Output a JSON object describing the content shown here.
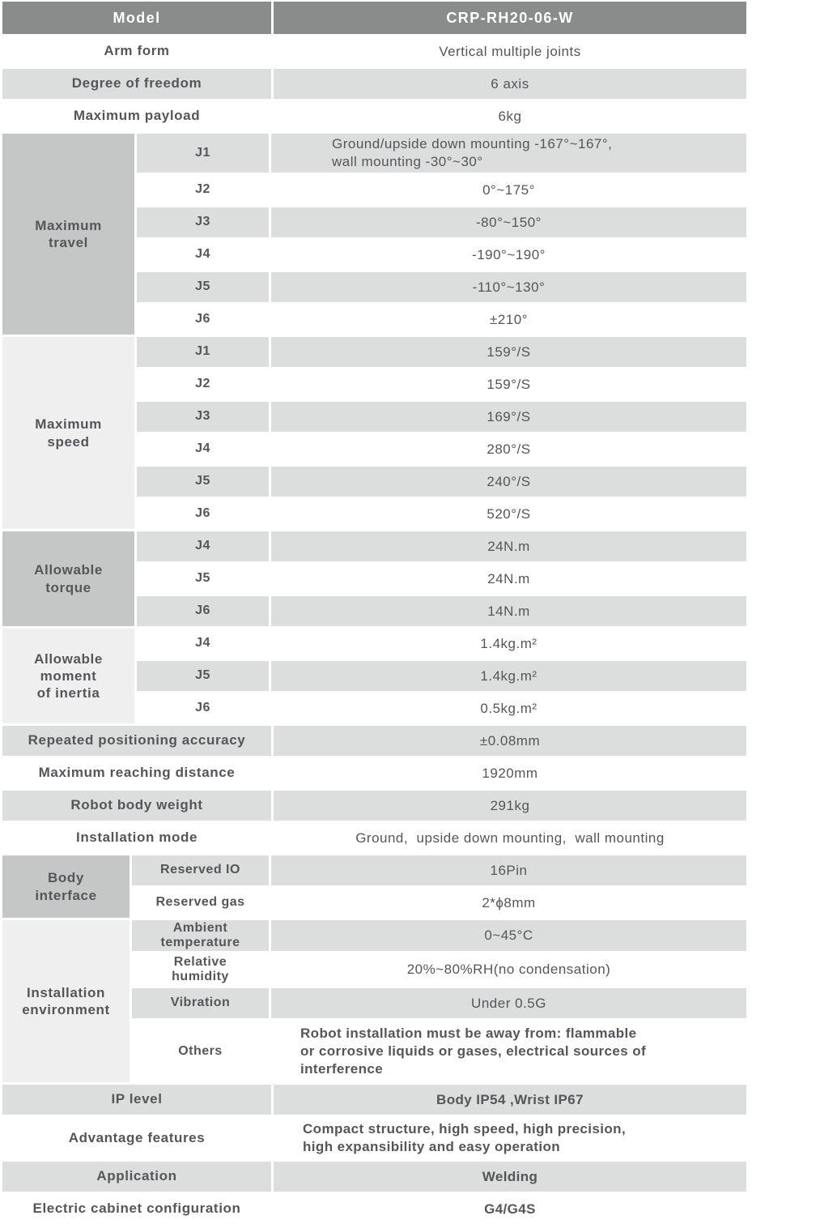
{
  "colors": {
    "header_bg": "#8a8b8b",
    "header_text": "#ffffff",
    "row_gray": "#dcdddd",
    "group_dark": "#c5c6c6",
    "group_light": "#efefef",
    "row_white": "#ffffff",
    "text": "#55565a"
  },
  "header": {
    "label": "Model",
    "value": "CRP-RH20-06-W"
  },
  "top_rows": [
    {
      "label": "Arm form",
      "value": "Vertical multiple joints"
    },
    {
      "label": "Degree of freedom",
      "value": "6 axis"
    },
    {
      "label": "Maximum payload",
      "value": "6kg"
    }
  ],
  "groups": {
    "maximum_travel": {
      "label": "Maximum\ntravel",
      "rows": [
        {
          "joint": "J1",
          "value": "Ground/upside down mounting -167°~167°,\nwall mounting -30°~30°"
        },
        {
          "joint": "J2",
          "value": "0°~175°"
        },
        {
          "joint": "J3",
          "value": "-80°~150°"
        },
        {
          "joint": "J4",
          "value": "-190°~190°"
        },
        {
          "joint": "J5",
          "value": "-110°~130°"
        },
        {
          "joint": "J6",
          "value": "±210°"
        }
      ]
    },
    "maximum_speed": {
      "label": "Maximum\nspeed",
      "rows": [
        {
          "joint": "J1",
          "value": "159°/S"
        },
        {
          "joint": "J2",
          "value": "159°/S"
        },
        {
          "joint": "J3",
          "value": "169°/S"
        },
        {
          "joint": "J4",
          "value": "280°/S"
        },
        {
          "joint": "J5",
          "value": "240°/S"
        },
        {
          "joint": "J6",
          "value": "520°/S"
        }
      ]
    },
    "allowable_torque": {
      "label": "Allowable\ntorque",
      "rows": [
        {
          "joint": "J4",
          "value": "24N.m"
        },
        {
          "joint": "J5",
          "value": "24N.m"
        },
        {
          "joint": "J6",
          "value": "14N.m"
        }
      ]
    },
    "allowable_inertia": {
      "label": "Allowable\nmoment\nof inertia",
      "rows": [
        {
          "joint": "J4",
          "value": "1.4kg.m²"
        },
        {
          "joint": "J5",
          "value": "1.4kg.m²"
        },
        {
          "joint": "J6",
          "value": "0.5kg.m²"
        }
      ]
    },
    "body_interface": {
      "label": "Body\ninterface",
      "rows": [
        {
          "name": "Reserved IO",
          "value": "16Pin"
        },
        {
          "name": "Reserved gas",
          "value": "2*ϕ8mm"
        }
      ]
    },
    "installation_environment": {
      "label": "Installation\nenvironment",
      "rows": [
        {
          "name": "Ambient\ntemperature",
          "value": "0~45°C"
        },
        {
          "name": "Relative\nhumidity",
          "value": "20%~80%RH(no condensation)"
        },
        {
          "name": "Vibration",
          "value": "Under 0.5G"
        },
        {
          "name": "Others",
          "value": "Robot installation must be away from: flammable\nor corrosive liquids or gases, electrical sources of\ninterference"
        }
      ]
    }
  },
  "mid_rows": [
    {
      "label": "Repeated positioning accuracy",
      "value": "±0.08mm"
    },
    {
      "label": "Maximum reaching distance",
      "value": "1920mm"
    },
    {
      "label": "Robot body weight",
      "value": "291kg"
    },
    {
      "label": "Installation mode",
      "value": "Ground,  upside down mounting,  wall mounting"
    }
  ],
  "bottom_rows": [
    {
      "label": "IP level",
      "value": "Body IP54 ,Wrist IP67"
    },
    {
      "label": "Advantage features",
      "value": "Compact structure, high speed, high precision,\nhigh expansibility and easy operation"
    },
    {
      "label": "Application",
      "value": "Welding"
    },
    {
      "label": "Electric cabinet configuration",
      "value": "G4/G4S"
    }
  ]
}
